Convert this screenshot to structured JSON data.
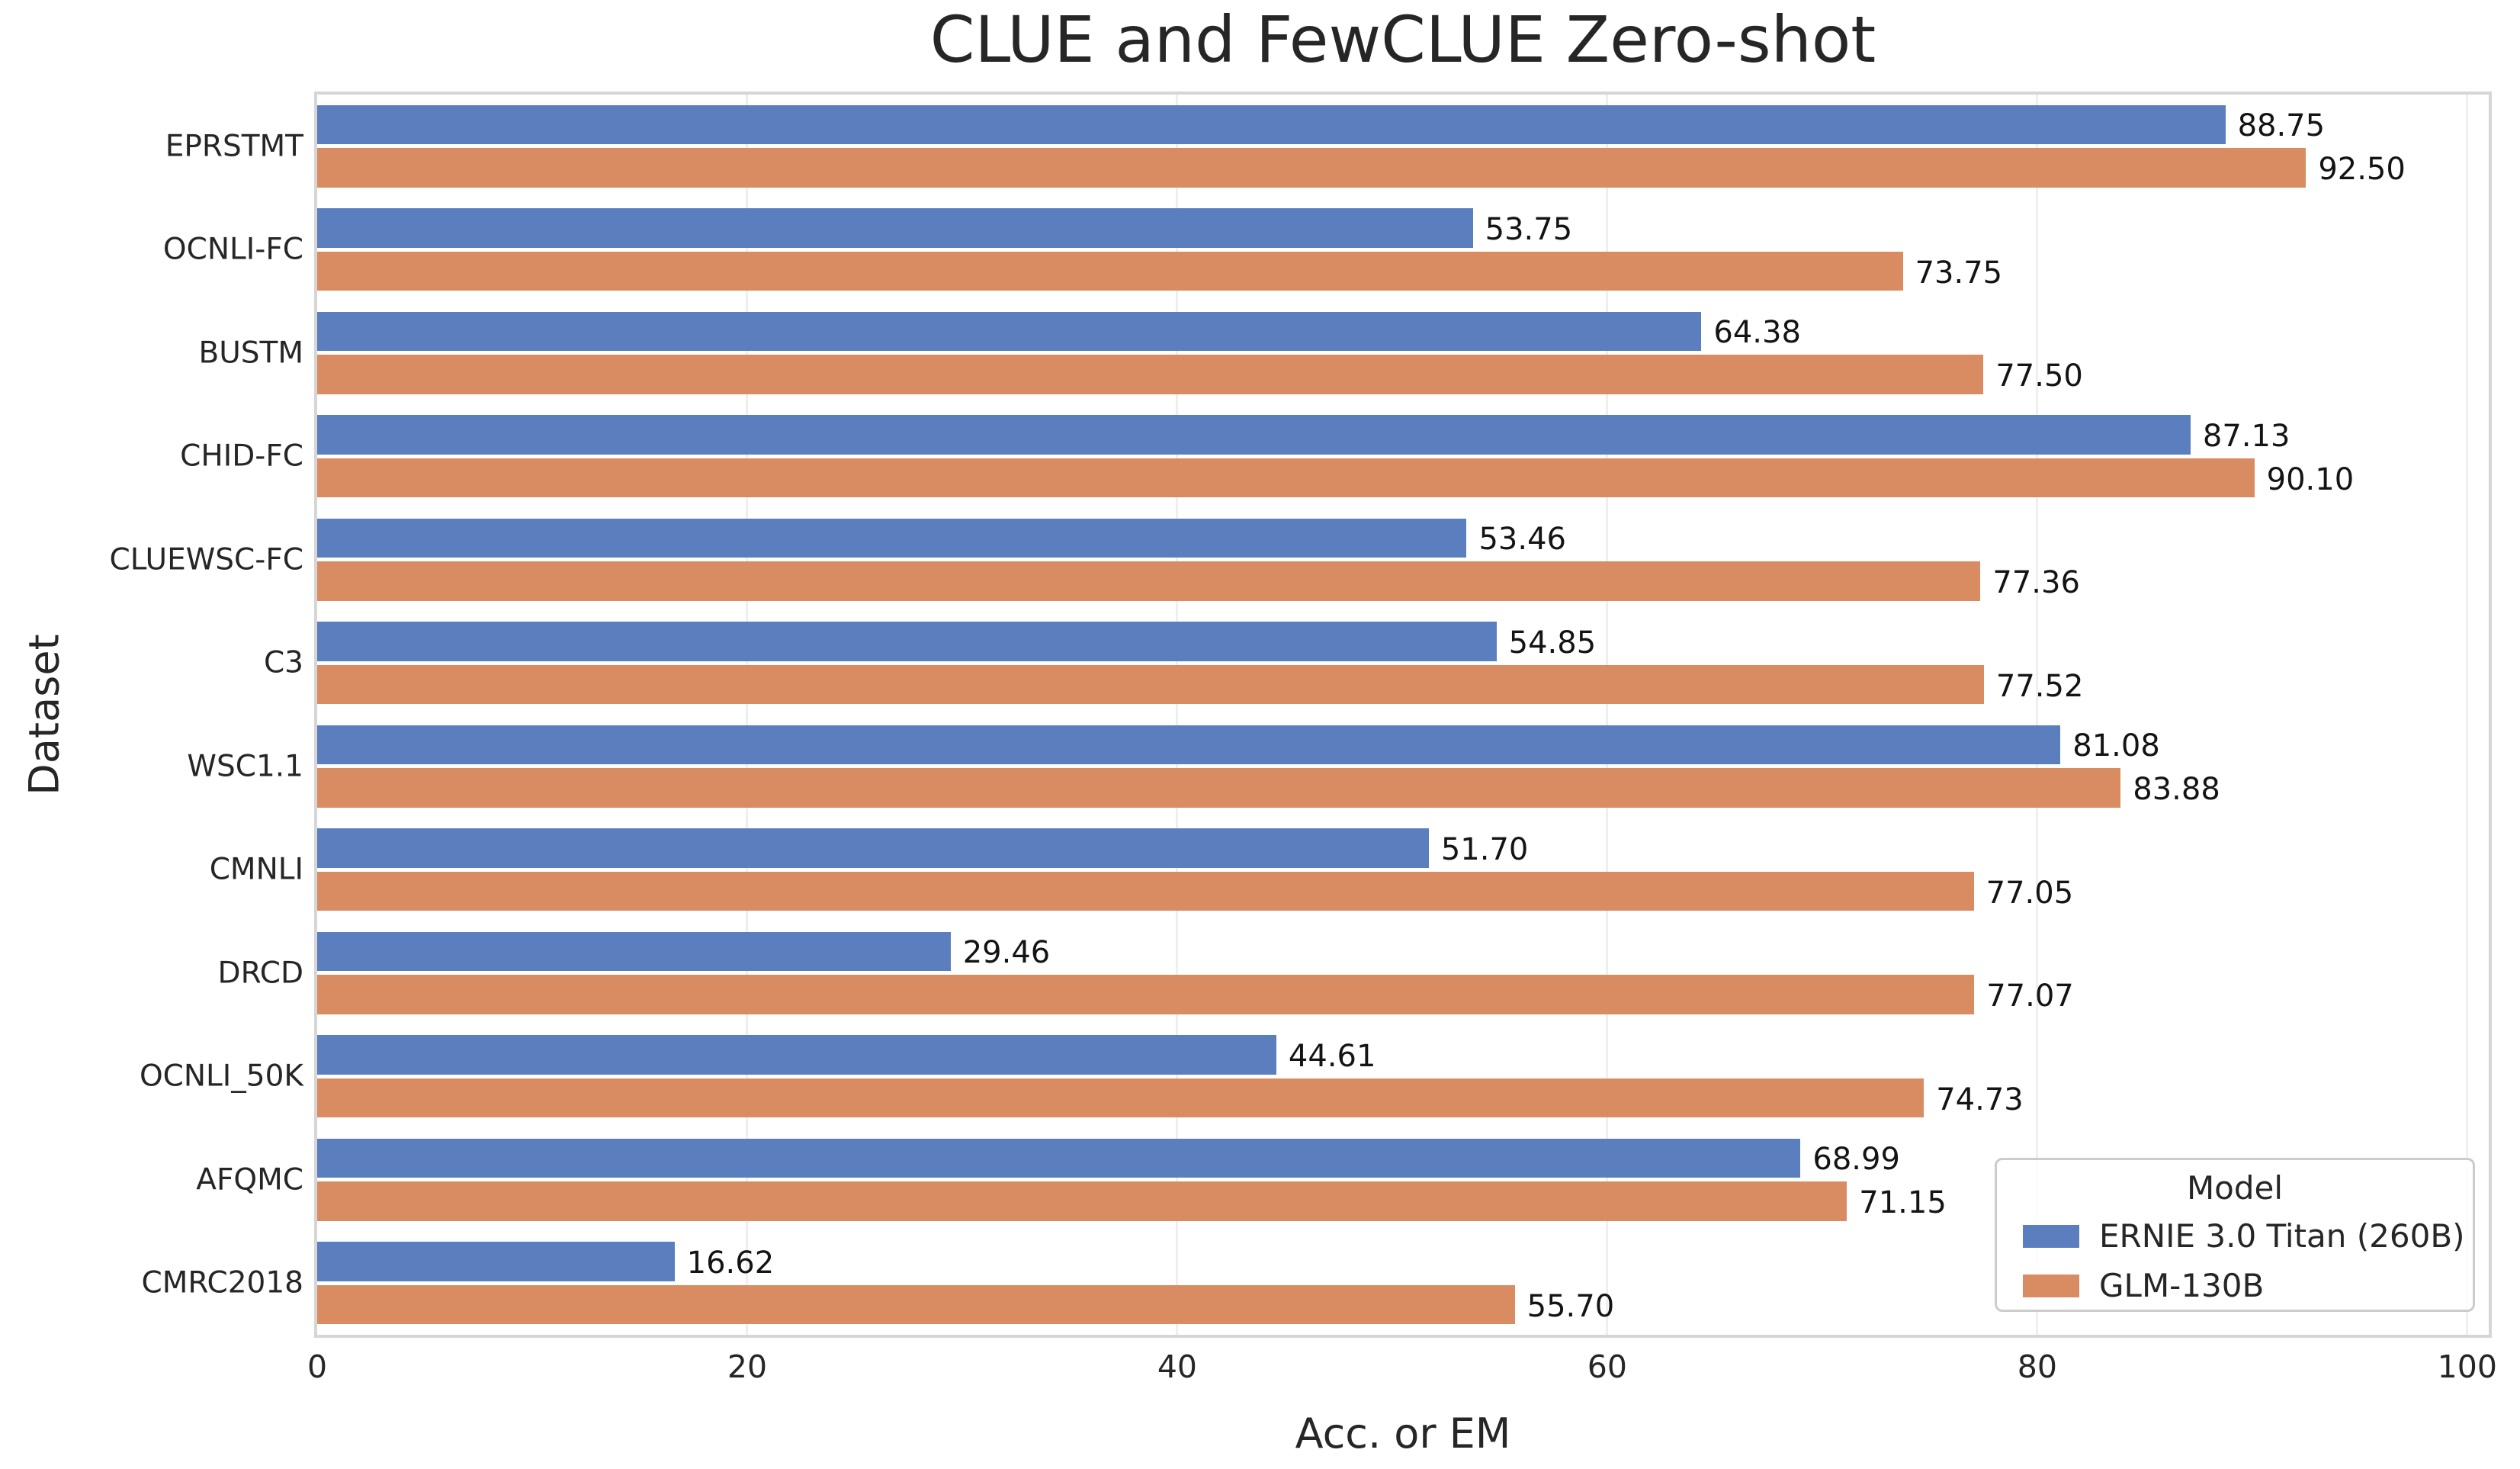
{
  "chart_data": {
    "type": "bar",
    "orientation": "horizontal",
    "title": "CLUE and FewCLUE Zero-shot",
    "xlabel": "Acc. or EM",
    "ylabel": "Dataset",
    "xlim": [
      0,
      101
    ],
    "xticks": [
      0,
      20,
      40,
      60,
      80,
      100
    ],
    "grid": "vertical-light",
    "value_label_format": "two-decimals",
    "legend": {
      "title": "Model",
      "position": "lower right"
    },
    "categories": [
      "EPRSTMT",
      "OCNLI-FC",
      "BUSTM",
      "CHID-FC",
      "CLUEWSC-FC",
      "C3",
      "WSC1.1",
      "CMNLI",
      "DRCD",
      "OCNLI_50K",
      "AFQMC",
      "CMRC2018"
    ],
    "series": [
      {
        "name": "ERNIE 3.0 Titan (260B)",
        "color": "#5a7ebe",
        "values": [
          88.75,
          53.75,
          64.38,
          87.13,
          53.46,
          54.85,
          81.08,
          51.7,
          29.46,
          44.61,
          68.99,
          16.62
        ]
      },
      {
        "name": "GLM-130B",
        "color": "#d98c62",
        "values": [
          92.5,
          73.75,
          77.5,
          90.1,
          77.36,
          77.52,
          83.88,
          77.05,
          77.07,
          74.73,
          71.15,
          55.7
        ]
      }
    ]
  },
  "style": {
    "text_color": "#262626",
    "value_label_color": "#141414",
    "spine_color": "#d6d6d6",
    "grid_color": "#efefef",
    "legend_border_color": "#cccccc",
    "background": "#ffffff"
  }
}
